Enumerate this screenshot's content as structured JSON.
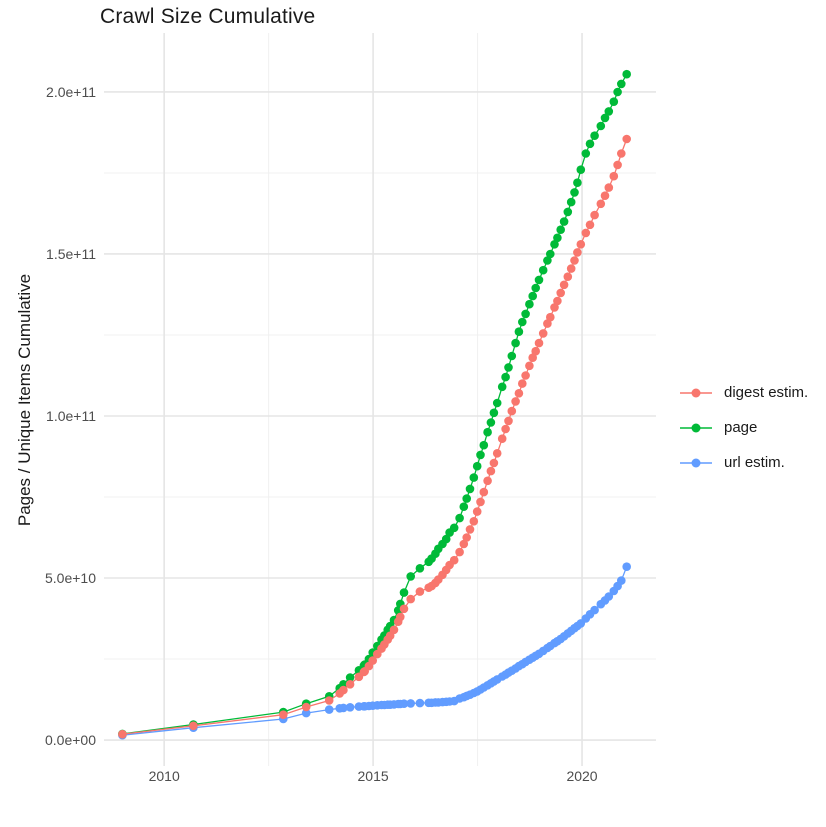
{
  "title": "Crawl Size Cumulative",
  "y_axis": {
    "title": "Pages / Unique Items Cumulative",
    "major_ticks": [
      {
        "label": "0.0e+00",
        "value_e9": 0
      },
      {
        "label": "5.0e+10",
        "value_e9": 50
      },
      {
        "label": "1.0e+11",
        "value_e9": 100
      },
      {
        "label": "1.5e+11",
        "value_e9": 150
      },
      {
        "label": "2.0e+11",
        "value_e9": 200
      }
    ],
    "minor_values_e9": [
      25,
      75,
      125,
      175
    ]
  },
  "x_axis": {
    "major_ticks": [
      {
        "label": "2010",
        "value": 2010
      },
      {
        "label": "2015",
        "value": 2015
      },
      {
        "label": "2020",
        "value": 2020
      }
    ],
    "minor_values": [
      2012.5,
      2017.5
    ]
  },
  "legend": {
    "items": [
      {
        "label": "digest estim.",
        "series": "digest-estim",
        "color": "#F8766D"
      },
      {
        "label": "page",
        "series": "page",
        "color": "#00BA38"
      },
      {
        "label": "url estim.",
        "series": "url-estim",
        "color": "#619CFF"
      }
    ]
  },
  "style": {
    "grid_major_color": "#e5e5e5",
    "grid_minor_color": "#f0f0f0",
    "tick_text_color": "#4d4d4d",
    "title_text_color": "#1a1a1a",
    "point_radius": 4.3,
    "line_width": 1.3
  },
  "chart_data": {
    "type": "line",
    "title": "Crawl Size Cumulative",
    "xlabel": "",
    "ylabel": "Pages / Unique Items Cumulative",
    "x_unit": "year (crawl date)",
    "y_unit": "cumulative items, billions (1e9)",
    "x_domain": [
      2008.56,
      2021.77
    ],
    "y_domain_e9": [
      -8.02,
      218.2
    ],
    "grid": true,
    "legend_position": "right",
    "x": [
      2009.0,
      2010.7,
      2012.85,
      2013.4,
      2013.95,
      2014.2,
      2014.29,
      2014.45,
      2014.66,
      2014.78,
      2014.8,
      2014.9,
      2014.99,
      2015.1,
      2015.2,
      2015.27,
      2015.35,
      2015.41,
      2015.5,
      2015.6,
      2015.65,
      2015.74,
      2015.9,
      2016.12,
      2016.33,
      2016.4,
      2016.49,
      2016.56,
      2016.66,
      2016.75,
      2016.83,
      2016.94,
      2017.07,
      2017.17,
      2017.24,
      2017.32,
      2017.41,
      2017.49,
      2017.57,
      2017.65,
      2017.74,
      2017.82,
      2017.89,
      2017.97,
      2018.09,
      2018.17,
      2018.24,
      2018.32,
      2018.41,
      2018.49,
      2018.57,
      2018.65,
      2018.74,
      2018.82,
      2018.89,
      2018.97,
      2019.07,
      2019.17,
      2019.24,
      2019.34,
      2019.41,
      2019.49,
      2019.57,
      2019.66,
      2019.74,
      2019.82,
      2019.89,
      2019.97,
      2020.09,
      2020.19,
      2020.3,
      2020.45,
      2020.55,
      2020.64,
      2020.76,
      2020.85,
      2020.94,
      2021.07
    ],
    "series": [
      {
        "name": "digest estim.",
        "color": "#F8766D",
        "values_e9": [
          1.8,
          4.4,
          7.8,
          10.2,
          12.2,
          14.4,
          15.4,
          17.2,
          19.5,
          21.0,
          21.2,
          22.8,
          24.5,
          26.5,
          28.2,
          29.5,
          31.0,
          32.2,
          34.0,
          36.5,
          38.0,
          40.5,
          43.5,
          45.8,
          47.0,
          47.5,
          48.5,
          49.5,
          51.0,
          52.5,
          54.0,
          55.5,
          58.0,
          60.5,
          62.5,
          65.0,
          67.5,
          70.5,
          73.5,
          76.5,
          80.0,
          83.0,
          85.5,
          88.5,
          93.0,
          96.0,
          98.5,
          101.5,
          104.5,
          107.0,
          110.0,
          112.5,
          115.5,
          118.0,
          120.0,
          122.5,
          125.5,
          128.5,
          130.5,
          133.5,
          135.5,
          138.0,
          140.5,
          143.0,
          145.5,
          148.0,
          150.5,
          153.0,
          156.5,
          159.0,
          162.0,
          165.5,
          168.0,
          170.5,
          174.0,
          177.5,
          181.0,
          185.5
        ]
      },
      {
        "name": "page",
        "color": "#00BA38",
        "values_e9": [
          1.9,
          4.8,
          8.6,
          11.2,
          13.5,
          16.0,
          17.2,
          19.3,
          21.5,
          23.0,
          23.3,
          25.0,
          27.0,
          29.0,
          31.0,
          32.3,
          34.0,
          35.2,
          37.0,
          40.0,
          42.0,
          45.5,
          50.5,
          53.0,
          55.0,
          56.0,
          57.5,
          59.0,
          60.5,
          62.0,
          64.0,
          65.5,
          68.5,
          72.0,
          74.5,
          77.5,
          81.0,
          84.5,
          88.0,
          91.0,
          95.0,
          98.0,
          101.0,
          104.0,
          109.0,
          112.0,
          115.0,
          118.5,
          122.5,
          126.0,
          129.0,
          131.5,
          134.5,
          137.0,
          139.5,
          142.0,
          145.0,
          148.0,
          150.0,
          153.0,
          155.0,
          157.5,
          160.0,
          163.0,
          166.0,
          169.0,
          172.0,
          176.0,
          181.0,
          184.0,
          186.5,
          189.5,
          192.0,
          194.0,
          197.0,
          200.0,
          202.5,
          205.5
        ]
      },
      {
        "name": "url estim.",
        "color": "#619CFF",
        "values_e9": [
          1.5,
          3.8,
          6.5,
          8.3,
          9.4,
          9.8,
          9.9,
          10.1,
          10.3,
          10.4,
          10.4,
          10.5,
          10.6,
          10.7,
          10.8,
          10.8,
          10.9,
          10.9,
          11.0,
          11.1,
          11.1,
          11.2,
          11.3,
          11.4,
          11.5,
          11.5,
          11.6,
          11.6,
          11.7,
          11.8,
          11.9,
          12.0,
          12.8,
          13.2,
          13.6,
          14.0,
          14.5,
          15.0,
          15.6,
          16.2,
          16.9,
          17.5,
          18.1,
          18.7,
          19.6,
          20.2,
          20.8,
          21.4,
          22.1,
          22.8,
          23.4,
          24.1,
          24.8,
          25.4,
          26.0,
          26.6,
          27.5,
          28.4,
          29.0,
          29.9,
          30.5,
          31.2,
          32.0,
          32.9,
          33.7,
          34.5,
          35.2,
          36.0,
          37.5,
          38.8,
          40.1,
          41.9,
          43.1,
          44.3,
          46.0,
          47.5,
          49.2,
          53.5
        ]
      }
    ]
  }
}
